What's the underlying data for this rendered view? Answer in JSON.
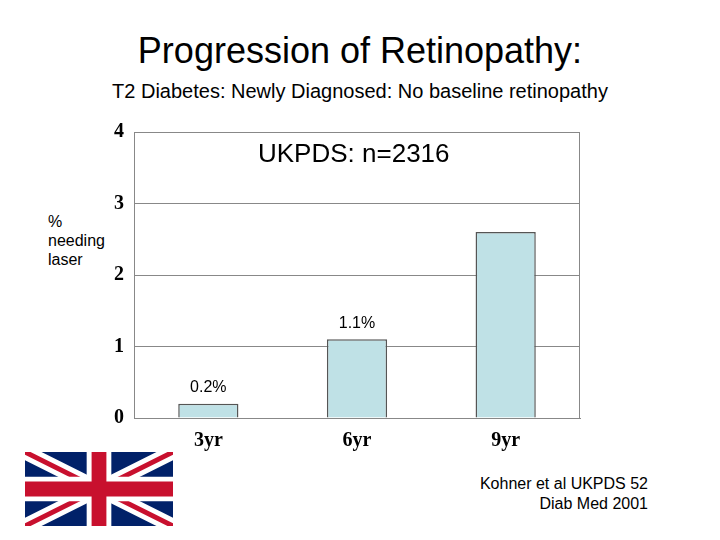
{
  "chart_data": {
    "type": "bar",
    "title": "Progression of Retinopathy:",
    "subtitle": "T2 Diabetes: Newly Diagnosed: No baseline retinopathy",
    "annotation": "UKPDS: n=2316",
    "y_label": "% needing laser",
    "source": [
      "Kohner et al UKPDS 52",
      "Diab Med 2001"
    ],
    "categories": [
      "3yr",
      "6yr",
      "9yr"
    ],
    "values": [
      0.2,
      1.1,
      2.6
    ],
    "value_labels": [
      "0.2%",
      "1.1%",
      null
    ],
    "data_labels": true,
    "color": "#bfe1e6",
    "ylim": [
      0,
      4
    ],
    "yticks": [
      0,
      1,
      2,
      3,
      4
    ],
    "grid": true
  }
}
